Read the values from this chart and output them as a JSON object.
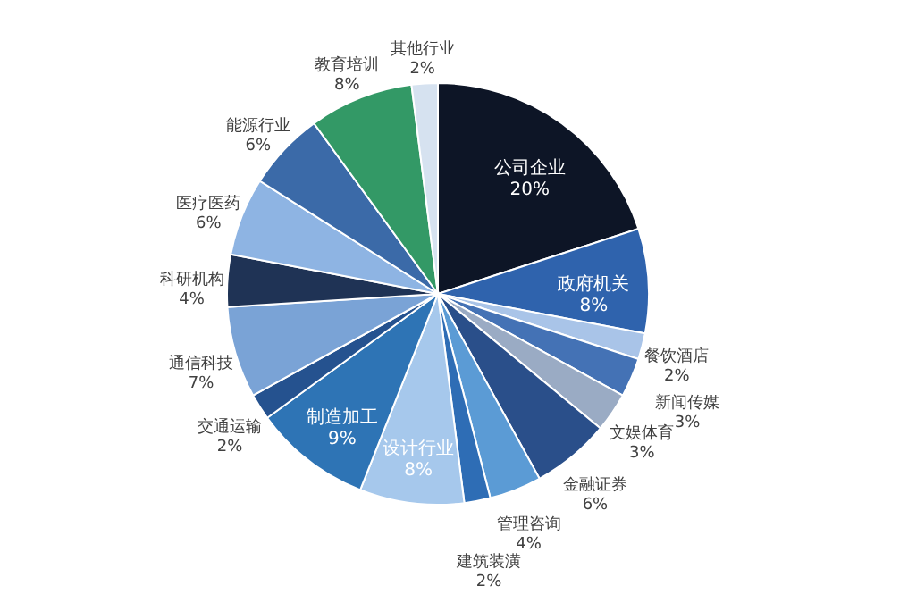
{
  "chart_data": {
    "type": "pie",
    "categories": [
      "公司企业",
      "政府机关",
      "餐饮酒店",
      "新闻传媒",
      "文娱体育",
      "金融证券",
      "管理咨询",
      "建筑装潢",
      "设计行业",
      "制造加工",
      "交通运输",
      "通信科技",
      "科研机构",
      "医疗医药",
      "能源行业",
      "教育培训",
      "其他行业"
    ],
    "values": [
      20,
      8,
      2,
      3,
      3,
      6,
      4,
      2,
      8,
      9,
      2,
      7,
      4,
      6,
      6,
      8,
      2
    ],
    "value_labels": [
      "20%",
      "8%",
      "2%",
      "3%",
      "3%",
      "6%",
      "4%",
      "2%",
      "8%",
      "9%",
      "2%",
      "7%",
      "4%",
      "6%",
      "6%",
      "8%",
      "2%"
    ],
    "colors": [
      "#0d1526",
      "#2f63ad",
      "#a9c4e8",
      "#4472b5",
      "#9aabc4",
      "#2a4f8a",
      "#5b9bd5",
      "#2e6db5",
      "#a6c8ec",
      "#2e74b5",
      "#25528f",
      "#7aa3d6",
      "#1f3355",
      "#8eb4e3",
      "#3b6aa8",
      "#339966",
      "#d6e2f0"
    ],
    "legend": false
  }
}
